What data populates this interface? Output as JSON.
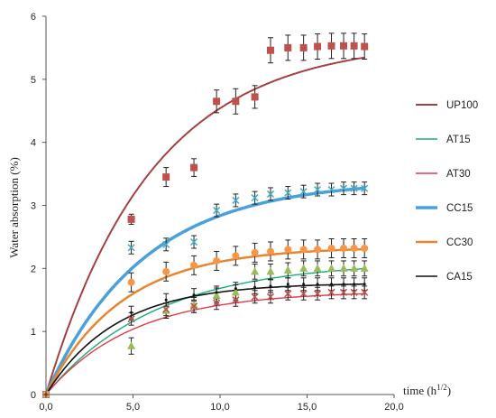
{
  "chart_data": {
    "type": "scatter",
    "xlabel": "time (h",
    "xlabel_sup": "1/2",
    "xlabel_close": ")",
    "ylabel": "Water absorption (%)",
    "xlim": [
      0,
      20
    ],
    "ylim": [
      0,
      6
    ],
    "xticks": [
      "0,0",
      "5,0",
      "10,0",
      "15,0",
      "20,0"
    ],
    "yticks": [
      "0",
      "1",
      "2",
      "3",
      "4",
      "5",
      "6"
    ],
    "grid": false,
    "legend_position": "right",
    "x": [
      0,
      4.9,
      6.9,
      8.5,
      9.8,
      10.9,
      12.0,
      12.9,
      13.9,
      14.8,
      15.6,
      16.4,
      17.1,
      17.7,
      18.3
    ],
    "series": [
      {
        "name": "UP100",
        "color": "#a4403f",
        "marker": "square",
        "marker_color": "#c0504d",
        "width": 2,
        "y": [
          0,
          2.78,
          3.45,
          3.6,
          4.65,
          4.65,
          4.72,
          5.46,
          5.5,
          5.5,
          5.52,
          5.53,
          5.53,
          5.53,
          5.52
        ],
        "err": [
          0,
          0.08,
          0.15,
          0.14,
          0.18,
          0.2,
          0.18,
          0.2,
          0.2,
          0.2,
          0.2,
          0.2,
          0.2,
          0.2,
          0.2
        ],
        "fit": {
          "a": 5.62,
          "b": 0.165
        }
      },
      {
        "name": "AT15",
        "color": "#1aab7a",
        "marker": "triangle",
        "marker_color": "#9bbb59",
        "width": 1.4,
        "y": [
          0,
          0.77,
          1.33,
          1.42,
          1.57,
          1.62,
          1.95,
          1.95,
          1.97,
          2.0,
          2.0,
          2.0,
          2.0,
          2.0,
          2.0
        ],
        "err": [
          0,
          0.13,
          0.12,
          0.12,
          0.12,
          0.12,
          0.12,
          0.12,
          0.12,
          0.12,
          0.12,
          0.12,
          0.12,
          0.12,
          0.12
        ],
        "fit": {
          "a": 2.11,
          "b": 0.16
        }
      },
      {
        "name": "AT30",
        "color": "#e13b48",
        "marker": "x",
        "marker_color": "#c0504d",
        "width": 1.4,
        "y": [
          0,
          1.2,
          1.35,
          1.4,
          1.45,
          1.5,
          1.55,
          1.55,
          1.6,
          1.6,
          1.6,
          1.62,
          1.62,
          1.62,
          1.62
        ],
        "err": [
          0,
          0.1,
          0.1,
          0.1,
          0.1,
          0.1,
          0.1,
          0.1,
          0.1,
          0.1,
          0.1,
          0.1,
          0.1,
          0.1,
          0.1
        ],
        "fit": {
          "a": 1.64,
          "b": 0.2
        }
      },
      {
        "name": "CC15",
        "color": "#4aa0db",
        "marker": "x",
        "marker_color": "#4bacc6",
        "width": 3.5,
        "y": [
          0,
          2.33,
          2.38,
          2.42,
          2.92,
          3.08,
          3.12,
          3.18,
          3.2,
          3.22,
          3.25,
          3.25,
          3.27,
          3.27,
          3.27
        ],
        "err": [
          0,
          0.1,
          0.1,
          0.1,
          0.1,
          0.1,
          0.1,
          0.1,
          0.1,
          0.1,
          0.1,
          0.1,
          0.1,
          0.1,
          0.1
        ],
        "fit": {
          "a": 3.4,
          "b": 0.18
        }
      },
      {
        "name": "CC30",
        "color": "#e8852f",
        "marker": "circle",
        "marker_color": "#f79646",
        "width": 2.5,
        "y": [
          0,
          1.78,
          1.95,
          2.05,
          2.12,
          2.2,
          2.25,
          2.27,
          2.3,
          2.3,
          2.3,
          2.32,
          2.32,
          2.32,
          2.32
        ],
        "err": [
          0,
          0.15,
          0.15,
          0.15,
          0.15,
          0.15,
          0.15,
          0.15,
          0.15,
          0.15,
          0.15,
          0.15,
          0.15,
          0.15,
          0.15
        ],
        "fit": {
          "a": 2.34,
          "b": 0.23
        }
      },
      {
        "name": "CA15",
        "color": "#111111",
        "marker": "none",
        "marker_color": "#111111",
        "width": 1.6,
        "y": [
          0,
          1.3,
          1.5,
          1.58,
          1.62,
          1.68,
          1.7,
          1.72,
          1.75,
          1.75,
          1.75,
          1.75,
          1.75,
          1.75,
          1.75
        ],
        "err": [
          0,
          0.1,
          0.1,
          0.1,
          0.1,
          0.1,
          0.1,
          0.1,
          0.1,
          0.1,
          0.1,
          0.1,
          0.1,
          0.1,
          0.1
        ],
        "fit": {
          "a": 1.77,
          "b": 0.25
        }
      }
    ]
  }
}
